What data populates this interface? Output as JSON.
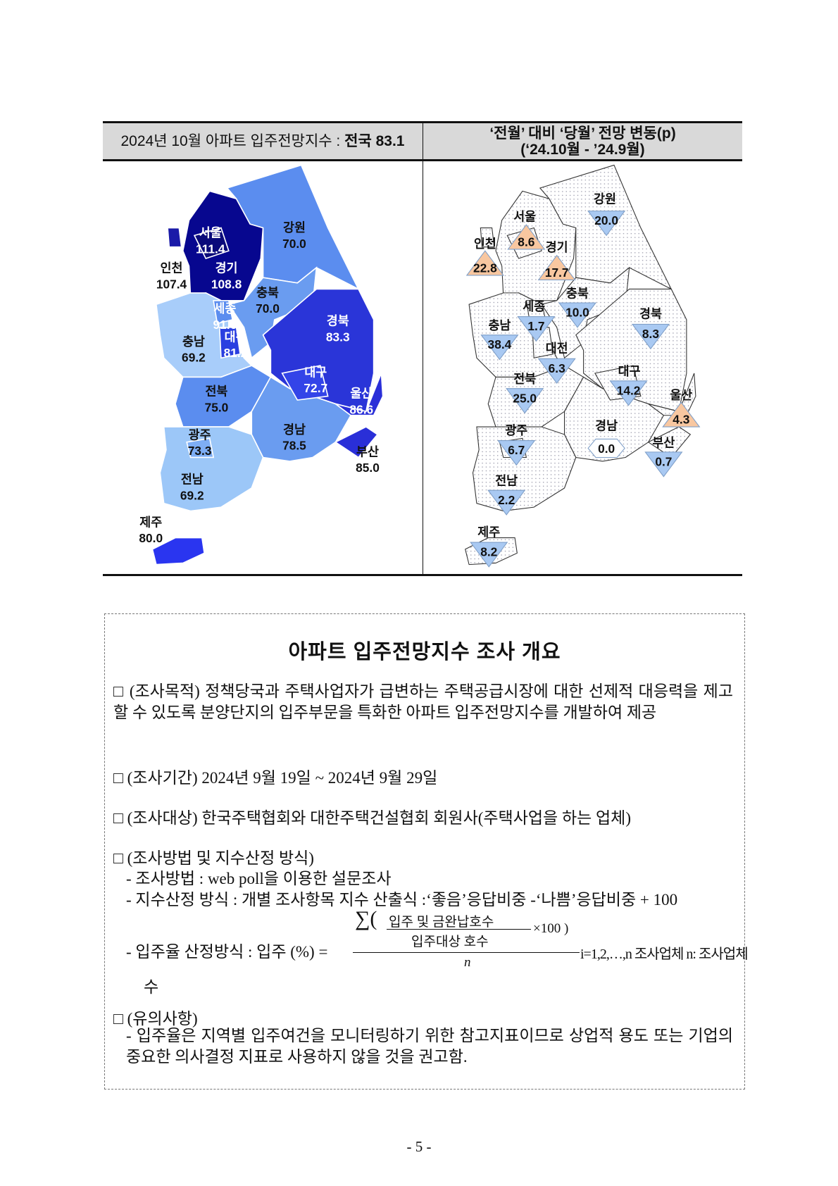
{
  "left_header": {
    "prefix": "2024년 10월 아파트 입주전망지수 :",
    "national": "전국 83.1"
  },
  "right_header": {
    "line1": "‘전월’ 대비 ‘당월’ 전망 변동(p)",
    "line2": "(‘24.10월  -  ’24.9월)"
  },
  "left_map": [
    {
      "region": "서울",
      "value": "111.4"
    },
    {
      "region": "인천",
      "value": "107.4"
    },
    {
      "region": "경기",
      "value": "108.8"
    },
    {
      "region": "강원",
      "value": "70.0"
    },
    {
      "region": "충북",
      "value": "70.0"
    },
    {
      "region": "세종",
      "value": "91.6"
    },
    {
      "region": "대전",
      "value": "81.2"
    },
    {
      "region": "충남",
      "value": "69.2"
    },
    {
      "region": "경북",
      "value": "83.3"
    },
    {
      "region": "대구",
      "value": "72.7"
    },
    {
      "region": "울산",
      "value": "86.6"
    },
    {
      "region": "전북",
      "value": "75.0"
    },
    {
      "region": "경남",
      "value": "78.5"
    },
    {
      "region": "부산",
      "value": "85.0"
    },
    {
      "region": "광주",
      "value": "73.3"
    },
    {
      "region": "전남",
      "value": "69.2"
    },
    {
      "region": "제주",
      "value": "80.0"
    }
  ],
  "right_map": [
    {
      "region": "강원",
      "value": "20.0",
      "direction": "down"
    },
    {
      "region": "서울",
      "value": "8.6",
      "direction": "up"
    },
    {
      "region": "인천",
      "value": "22.8",
      "direction": "up"
    },
    {
      "region": "경기",
      "value": "17.7",
      "direction": "up"
    },
    {
      "region": "충북",
      "value": "10.0",
      "direction": "down"
    },
    {
      "region": "세종",
      "value": "1.7",
      "direction": "down"
    },
    {
      "region": "충남",
      "value": "38.4",
      "direction": "down"
    },
    {
      "region": "경북",
      "value": "8.3",
      "direction": "down"
    },
    {
      "region": "대전",
      "value": "6.3",
      "direction": "down"
    },
    {
      "region": "대구",
      "value": "14.2",
      "direction": "down"
    },
    {
      "region": "전북",
      "value": "25.0",
      "direction": "down"
    },
    {
      "region": "울산",
      "value": "4.3",
      "direction": "up"
    },
    {
      "region": "광주",
      "value": "6.7",
      "direction": "down"
    },
    {
      "region": "경남",
      "value": "0.0",
      "direction": "flat"
    },
    {
      "region": "부산",
      "value": "0.7",
      "direction": "down"
    },
    {
      "region": "전남",
      "value": "2.2",
      "direction": "down"
    },
    {
      "region": "제주",
      "value": "8.2",
      "direction": "down"
    }
  ],
  "colors": {
    "up": "#f8c7a0",
    "down": "#a9c9f2",
    "flat": "#ffffff"
  },
  "box": {
    "title": "아파트 입주전망지수 조사 개요",
    "purpose": "□ (조사목적) 정책당국과 주택사업자가 급변하는 주택공급시장에 대한 선제적 대응력을 제고할 수 있도록 분양단지의 입주부문을 특화한 아파트 입주전망지수를 개발하여 제공",
    "period": "□ (조사기간) 2024년 9월 19일 ~ 2024년 9월 29일",
    "target": "□ (조사대상) 한국주택협회와 대한주택건설협회 회원사(주택사업을 하는 업체)",
    "method_title": "□ (조사방법 및 지수산정 방식)",
    "method1": "- 조사방법 : web poll을 이용한 설문조사",
    "method2": "- 지수산정 방식 : 개별 조사항목 지수 산출식 :‘좋음’응답비중 -‘나쁨’응답비중 + 100",
    "formula_label": "- 입주율 산정방식 : 입주  (%) =",
    "formula_num_top": "입주 및   금완납호수",
    "formula_num_bottom": "입주대상 호수",
    "formula_x100": "×100 )",
    "formula_n": "n",
    "formula_tail": "i=1,2,…,n 조사업체 n:  조사업체",
    "formula_tail2": "수",
    "note_title": "□ (유의사항)",
    "note": "- 입주율은 지역별 입주여건을 모니터링하기 위한 참고지표이므로 상업적 용도 또는 기업의 중요한 의사결정 지표로 사용하지 않을 것을 권고함."
  },
  "page_number": "- 5 -"
}
